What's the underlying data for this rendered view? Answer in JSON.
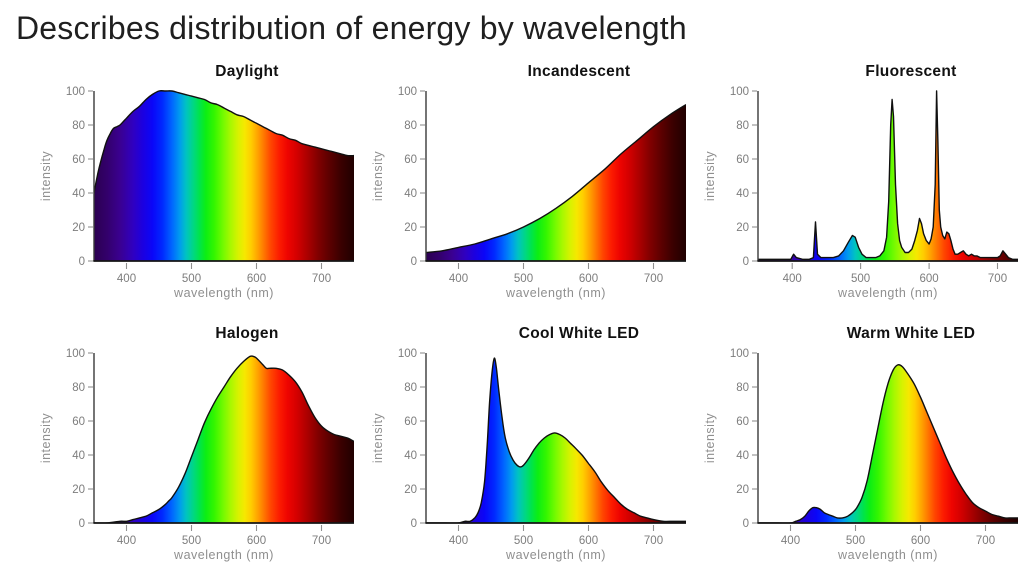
{
  "page": {
    "title": "Describes distribution of energy by wavelength"
  },
  "colors": {
    "background": "#ffffff",
    "page_title_text": "#1f1f1f",
    "chart_title_text": "#111111",
    "tick_text": "#7d7d7d",
    "axis_label_text": "#8f8f8f",
    "y_axis_line": "#3a3a3a",
    "baseline": "#151515",
    "tick_mark": "#909090",
    "curve_stroke": "#101010"
  },
  "spectrum_gradient": [
    {
      "nm": 350,
      "color": "#2b0050"
    },
    {
      "nm": 370,
      "color": "#33006b"
    },
    {
      "nm": 390,
      "color": "#3a0090"
    },
    {
      "nm": 410,
      "color": "#3000c0"
    },
    {
      "nm": 425,
      "color": "#1c00e0"
    },
    {
      "nm": 440,
      "color": "#0a06f8"
    },
    {
      "nm": 455,
      "color": "#0028ff"
    },
    {
      "nm": 470,
      "color": "#0066ff"
    },
    {
      "nm": 482,
      "color": "#009cee"
    },
    {
      "nm": 492,
      "color": "#00c4c0"
    },
    {
      "nm": 502,
      "color": "#00d688"
    },
    {
      "nm": 512,
      "color": "#00e44c"
    },
    {
      "nm": 522,
      "color": "#0cee14"
    },
    {
      "nm": 535,
      "color": "#34f600"
    },
    {
      "nm": 548,
      "color": "#70fa00"
    },
    {
      "nm": 560,
      "color": "#a8f800"
    },
    {
      "nm": 572,
      "color": "#d8f200"
    },
    {
      "nm": 582,
      "color": "#f6e800"
    },
    {
      "nm": 592,
      "color": "#ffcc00"
    },
    {
      "nm": 602,
      "color": "#ffa200"
    },
    {
      "nm": 612,
      "color": "#ff7400"
    },
    {
      "nm": 622,
      "color": "#ff4600"
    },
    {
      "nm": 635,
      "color": "#fc1c00"
    },
    {
      "nm": 648,
      "color": "#ee0400"
    },
    {
      "nm": 662,
      "color": "#d40000"
    },
    {
      "nm": 678,
      "color": "#ac0000"
    },
    {
      "nm": 695,
      "color": "#800000"
    },
    {
      "nm": 712,
      "color": "#5c0000"
    },
    {
      "nm": 730,
      "color": "#3a0000"
    },
    {
      "nm": 750,
      "color": "#200000"
    }
  ],
  "chart_data": [
    {
      "type": "area",
      "title": "Daylight",
      "xlabel": "wavelength (nm)",
      "ylabel": "intensity",
      "xlim": [
        350,
        750
      ],
      "ylim": [
        0,
        100
      ],
      "xticks": [
        400,
        500,
        600,
        700
      ],
      "yticks": [
        0,
        20,
        40,
        60,
        80,
        100
      ],
      "interp": "smooth",
      "fill": "spectral-gradient",
      "points": [
        [
          350,
          40
        ],
        [
          355,
          50
        ],
        [
          360,
          58
        ],
        [
          365,
          65
        ],
        [
          370,
          71
        ],
        [
          375,
          75
        ],
        [
          380,
          78
        ],
        [
          385,
          79
        ],
        [
          390,
          80
        ],
        [
          395,
          82
        ],
        [
          400,
          84
        ],
        [
          410,
          88
        ],
        [
          420,
          91
        ],
        [
          430,
          95
        ],
        [
          440,
          98
        ],
        [
          450,
          100
        ],
        [
          460,
          100
        ],
        [
          470,
          100
        ],
        [
          480,
          99
        ],
        [
          490,
          98
        ],
        [
          500,
          97
        ],
        [
          510,
          96
        ],
        [
          520,
          95
        ],
        [
          530,
          93
        ],
        [
          540,
          92
        ],
        [
          550,
          90
        ],
        [
          560,
          88
        ],
        [
          570,
          86
        ],
        [
          580,
          85
        ],
        [
          590,
          83
        ],
        [
          600,
          81
        ],
        [
          610,
          79
        ],
        [
          620,
          77
        ],
        [
          630,
          75
        ],
        [
          640,
          74
        ],
        [
          650,
          72
        ],
        [
          660,
          71
        ],
        [
          670,
          69
        ],
        [
          680,
          68
        ],
        [
          690,
          67
        ],
        [
          700,
          66
        ],
        [
          710,
          65
        ],
        [
          720,
          64
        ],
        [
          730,
          63
        ],
        [
          740,
          62
        ],
        [
          750,
          62
        ]
      ]
    },
    {
      "type": "area",
      "title": "Incandescent",
      "xlabel": "wavelength (nm)",
      "ylabel": "intensity",
      "xlim": [
        350,
        750
      ],
      "ylim": [
        0,
        100
      ],
      "xticks": [
        400,
        500,
        600,
        700
      ],
      "yticks": [
        0,
        20,
        40,
        60,
        80,
        100
      ],
      "interp": "smooth",
      "fill": "spectral-gradient",
      "points": [
        [
          350,
          5
        ],
        [
          375,
          6
        ],
        [
          400,
          8
        ],
        [
          425,
          10
        ],
        [
          450,
          13
        ],
        [
          475,
          16
        ],
        [
          500,
          20
        ],
        [
          525,
          25
        ],
        [
          550,
          31
        ],
        [
          575,
          38
        ],
        [
          600,
          46
        ],
        [
          625,
          54
        ],
        [
          650,
          63
        ],
        [
          675,
          71
        ],
        [
          700,
          79
        ],
        [
          725,
          86
        ],
        [
          750,
          92
        ]
      ]
    },
    {
      "type": "area",
      "title": "Fluorescent",
      "xlabel": "wavelength (nm)",
      "ylabel": "intensity",
      "xlim": [
        350,
        730
      ],
      "ylim": [
        0,
        100
      ],
      "xticks": [
        400,
        500,
        600,
        700
      ],
      "yticks": [
        0,
        20,
        40,
        60,
        80,
        100
      ],
      "interp": "linear",
      "fill": "spectral-gradient",
      "points": [
        [
          350,
          1
        ],
        [
          360,
          1
        ],
        [
          370,
          1
        ],
        [
          380,
          1
        ],
        [
          390,
          1
        ],
        [
          398,
          1
        ],
        [
          402,
          4
        ],
        [
          406,
          2
        ],
        [
          415,
          1
        ],
        [
          425,
          1
        ],
        [
          431,
          2
        ],
        [
          434,
          23
        ],
        [
          437,
          4
        ],
        [
          442,
          2
        ],
        [
          450,
          2
        ],
        [
          460,
          2
        ],
        [
          468,
          3
        ],
        [
          475,
          6
        ],
        [
          482,
          11
        ],
        [
          488,
          15
        ],
        [
          492,
          14
        ],
        [
          497,
          8
        ],
        [
          502,
          4
        ],
        [
          508,
          2
        ],
        [
          515,
          2
        ],
        [
          522,
          2
        ],
        [
          528,
          3
        ],
        [
          534,
          6
        ],
        [
          538,
          14
        ],
        [
          541,
          35
        ],
        [
          544,
          80
        ],
        [
          546,
          95
        ],
        [
          548,
          85
        ],
        [
          551,
          45
        ],
        [
          554,
          22
        ],
        [
          557,
          12
        ],
        [
          560,
          8
        ],
        [
          565,
          5
        ],
        [
          570,
          5
        ],
        [
          575,
          7
        ],
        [
          579,
          12
        ],
        [
          583,
          18
        ],
        [
          586,
          25
        ],
        [
          589,
          22
        ],
        [
          592,
          16
        ],
        [
          596,
          12
        ],
        [
          600,
          10
        ],
        [
          603,
          13
        ],
        [
          606,
          20
        ],
        [
          609,
          45
        ],
        [
          611,
          100
        ],
        [
          613,
          70
        ],
        [
          615,
          30
        ],
        [
          617,
          20
        ],
        [
          620,
          15
        ],
        [
          623,
          13
        ],
        [
          626,
          17
        ],
        [
          629,
          16
        ],
        [
          632,
          12
        ],
        [
          635,
          7
        ],
        [
          638,
          4
        ],
        [
          642,
          4
        ],
        [
          646,
          5
        ],
        [
          650,
          6
        ],
        [
          654,
          4
        ],
        [
          658,
          3
        ],
        [
          662,
          4
        ],
        [
          666,
          3
        ],
        [
          670,
          3
        ],
        [
          675,
          2
        ],
        [
          680,
          2
        ],
        [
          690,
          2
        ],
        [
          695,
          2
        ],
        [
          700,
          2
        ],
        [
          704,
          3
        ],
        [
          708,
          6
        ],
        [
          712,
          4
        ],
        [
          716,
          2
        ],
        [
          722,
          1
        ],
        [
          730,
          1
        ]
      ]
    },
    {
      "type": "area",
      "title": "Halogen",
      "xlabel": "wavelength (nm)",
      "ylabel": "intensity",
      "xlim": [
        350,
        750
      ],
      "ylim": [
        0,
        100
      ],
      "xticks": [
        400,
        500,
        600,
        700
      ],
      "yticks": [
        0,
        20,
        40,
        60,
        80,
        100
      ],
      "interp": "smooth",
      "fill": "spectral-gradient",
      "points": [
        [
          350,
          0
        ],
        [
          370,
          0
        ],
        [
          390,
          1
        ],
        [
          400,
          1
        ],
        [
          410,
          2
        ],
        [
          420,
          3
        ],
        [
          430,
          4
        ],
        [
          440,
          6
        ],
        [
          450,
          8
        ],
        [
          460,
          11
        ],
        [
          465,
          13
        ],
        [
          470,
          15
        ],
        [
          480,
          21
        ],
        [
          490,
          29
        ],
        [
          500,
          39
        ],
        [
          510,
          49
        ],
        [
          520,
          59
        ],
        [
          530,
          67
        ],
        [
          540,
          74
        ],
        [
          550,
          80
        ],
        [
          560,
          86
        ],
        [
          570,
          91
        ],
        [
          580,
          95
        ],
        [
          590,
          98
        ],
        [
          595,
          98
        ],
        [
          600,
          97
        ],
        [
          610,
          93
        ],
        [
          615,
          91
        ],
        [
          620,
          91
        ],
        [
          630,
          91
        ],
        [
          640,
          90
        ],
        [
          650,
          87
        ],
        [
          660,
          83
        ],
        [
          670,
          77
        ],
        [
          680,
          69
        ],
        [
          690,
          62
        ],
        [
          700,
          57
        ],
        [
          710,
          54
        ],
        [
          720,
          52
        ],
        [
          730,
          51
        ],
        [
          740,
          50
        ],
        [
          750,
          48
        ]
      ]
    },
    {
      "type": "area",
      "title": "Cool White LED",
      "xlabel": "wavelength (nm)",
      "ylabel": "intensity",
      "xlim": [
        350,
        750
      ],
      "ylim": [
        0,
        100
      ],
      "xticks": [
        400,
        500,
        600,
        700
      ],
      "yticks": [
        0,
        20,
        40,
        60,
        80,
        100
      ],
      "interp": "smooth",
      "fill": "spectral-gradient",
      "points": [
        [
          350,
          0
        ],
        [
          380,
          0
        ],
        [
          400,
          0
        ],
        [
          410,
          1
        ],
        [
          418,
          1
        ],
        [
          425,
          3
        ],
        [
          430,
          6
        ],
        [
          435,
          12
        ],
        [
          440,
          24
        ],
        [
          444,
          45
        ],
        [
          448,
          72
        ],
        [
          452,
          90
        ],
        [
          455,
          97
        ],
        [
          458,
          92
        ],
        [
          462,
          78
        ],
        [
          467,
          62
        ],
        [
          472,
          50
        ],
        [
          478,
          42
        ],
        [
          484,
          37
        ],
        [
          490,
          34
        ],
        [
          495,
          33
        ],
        [
          500,
          34
        ],
        [
          508,
          38
        ],
        [
          516,
          43
        ],
        [
          524,
          47
        ],
        [
          532,
          50
        ],
        [
          540,
          52
        ],
        [
          548,
          53
        ],
        [
          556,
          52
        ],
        [
          564,
          50
        ],
        [
          572,
          47
        ],
        [
          580,
          44
        ],
        [
          590,
          40
        ],
        [
          600,
          35
        ],
        [
          610,
          30
        ],
        [
          620,
          24
        ],
        [
          630,
          19
        ],
        [
          640,
          15
        ],
        [
          650,
          11
        ],
        [
          660,
          8
        ],
        [
          670,
          6
        ],
        [
          680,
          4
        ],
        [
          690,
          3
        ],
        [
          700,
          2
        ],
        [
          715,
          1
        ],
        [
          730,
          1
        ],
        [
          745,
          1
        ],
        [
          750,
          1
        ]
      ]
    },
    {
      "type": "area",
      "title": "Warm White LED",
      "xlabel": "wavelength (nm)",
      "ylabel": "intensity",
      "xlim": [
        350,
        750
      ],
      "ylim": [
        0,
        100
      ],
      "xticks": [
        400,
        500,
        600,
        700
      ],
      "yticks": [
        0,
        20,
        40,
        60,
        80,
        100
      ],
      "interp": "smooth",
      "fill": "spectral-gradient",
      "points": [
        [
          350,
          0
        ],
        [
          380,
          0
        ],
        [
          400,
          0
        ],
        [
          408,
          1
        ],
        [
          415,
          2
        ],
        [
          422,
          4
        ],
        [
          428,
          7
        ],
        [
          434,
          9
        ],
        [
          440,
          9
        ],
        [
          446,
          8
        ],
        [
          452,
          6
        ],
        [
          458,
          5
        ],
        [
          465,
          4
        ],
        [
          472,
          3
        ],
        [
          480,
          3
        ],
        [
          488,
          4
        ],
        [
          495,
          6
        ],
        [
          502,
          9
        ],
        [
          510,
          15
        ],
        [
          518,
          25
        ],
        [
          526,
          40
        ],
        [
          534,
          55
        ],
        [
          542,
          70
        ],
        [
          550,
          82
        ],
        [
          558,
          90
        ],
        [
          565,
          93
        ],
        [
          572,
          92
        ],
        [
          580,
          88
        ],
        [
          590,
          82
        ],
        [
          600,
          74
        ],
        [
          610,
          65
        ],
        [
          620,
          56
        ],
        [
          630,
          47
        ],
        [
          640,
          38
        ],
        [
          650,
          30
        ],
        [
          660,
          23
        ],
        [
          670,
          17
        ],
        [
          680,
          12
        ],
        [
          690,
          9
        ],
        [
          700,
          7
        ],
        [
          710,
          5
        ],
        [
          720,
          4
        ],
        [
          730,
          3
        ],
        [
          740,
          3
        ],
        [
          750,
          3
        ]
      ]
    }
  ]
}
